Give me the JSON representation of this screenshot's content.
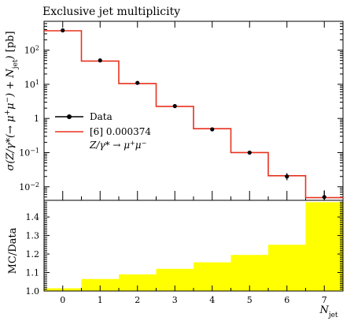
{
  "chart_data": [
    {
      "type": "line",
      "title": "Exclusive jet multiplicity",
      "ylabel": "σ(Z/γ*(→ μ⁺μ⁻) + N_jet) [pb]",
      "xlabel": "N_jet",
      "xlim": [
        -0.5,
        7.5
      ],
      "ylim": [
        0.004,
        700
      ],
      "ylog": true,
      "x": [
        0,
        1,
        2,
        3,
        4,
        5,
        6,
        7
      ],
      "xtick_labels": [
        "0",
        "1",
        "2",
        "3",
        "4",
        "5",
        "6",
        "7"
      ],
      "ytick_labels": [
        "10^-2",
        "10^-1",
        "1",
        "10^1",
        "10^2"
      ],
      "legend_position": "middle-left",
      "series": [
        {
          "name": "Data",
          "style": "points",
          "color": "#000000",
          "values": [
            380,
            50,
            11,
            2.3,
            0.48,
            0.1,
            0.02,
            0.005
          ],
          "err_low": [
            20,
            2.5,
            0.6,
            0.15,
            0.04,
            0.012,
            0.0045,
            0.0025
          ],
          "err_high": [
            20,
            2.5,
            0.6,
            0.15,
            0.04,
            0.012,
            0.005,
            0.0028
          ]
        },
        {
          "name": "[6] 0.000374",
          "name_line2": "Z/γ* → μ⁺μ⁻",
          "style": "histogram",
          "color": "#e8321e",
          "values": [
            370,
            48,
            10.5,
            2.25,
            0.5,
            0.1,
            0.021,
            0.0048
          ]
        }
      ]
    },
    {
      "type": "bar",
      "ylabel": "MC/Data",
      "xlabel": "N_jet",
      "xlim": [
        -0.5,
        7.5
      ],
      "ylim": [
        1.0,
        1.49
      ],
      "fill_color": "#ffff00",
      "ytick_labels": [
        "1.0",
        "1.1",
        "1.2",
        "1.3",
        "1.4"
      ],
      "categories": [
        "0",
        "1",
        "2",
        "3",
        "4",
        "5",
        "6",
        "7"
      ],
      "values": [
        1.015,
        1.065,
        1.09,
        1.12,
        1.155,
        1.195,
        1.25,
        1.48
      ]
    }
  ]
}
